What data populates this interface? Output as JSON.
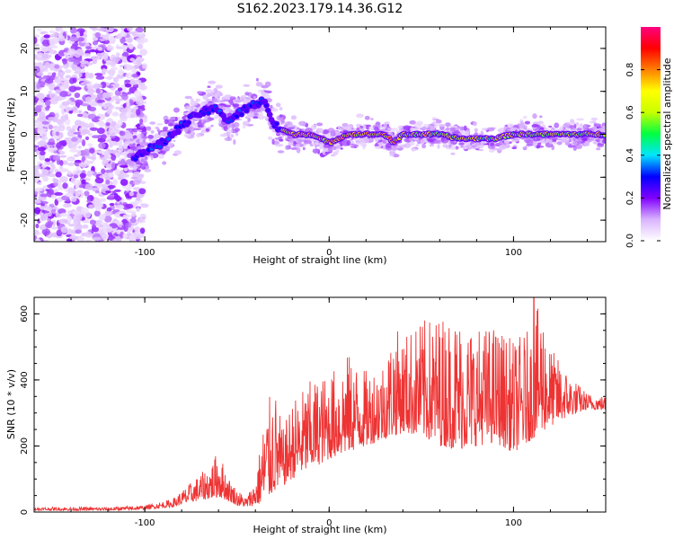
{
  "figure_title": "S162.2023.179.14.36.G12",
  "chart_data": [
    {
      "type": "heatmap",
      "title": "S162.2023.179.14.36.G12",
      "xlabel": "Height of straight line (km)",
      "ylabel": "Frequency (Hz)",
      "xlim": [
        -160,
        150
      ],
      "ylim": [
        -25,
        25
      ],
      "xticks": [
        -100,
        0,
        100
      ],
      "yticks": [
        -20,
        -10,
        0,
        10,
        20
      ],
      "colorbar": {
        "label": "Normalized spectral amplitude",
        "range": [
          0,
          1
        ],
        "ticks": [
          0.0,
          0.2,
          0.4,
          0.6,
          0.8
        ],
        "colormap": [
          "#ffffff",
          "#d9b3ff",
          "#8000ff",
          "#0000ff",
          "#00e5ff",
          "#00ff40",
          "#c8ff00",
          "#ffff00",
          "#ff8000",
          "#ff0000",
          "#ff0080"
        ]
      },
      "ridge": {
        "description_points_x": [
          -105,
          -100,
          -90,
          -80,
          -70,
          -60,
          -55,
          -45,
          -35,
          -30,
          -20,
          -10,
          0,
          10,
          20,
          30,
          35,
          40,
          50,
          60,
          70,
          80,
          90,
          100,
          110,
          120,
          130,
          140,
          150
        ],
        "description_points_y": [
          -5,
          -4,
          -2,
          2,
          5,
          6,
          3,
          6,
          8,
          2,
          0,
          0,
          -2,
          0,
          0,
          0,
          -2,
          0,
          0,
          0,
          -1,
          -1,
          -1,
          0,
          0,
          0,
          0,
          0,
          0
        ],
        "peak_amplitude": 1.0
      }
    },
    {
      "type": "line",
      "xlabel": "Height of straight line (km)",
      "ylabel": "SNR (10 * v/v)",
      "xlim": [
        -160,
        150
      ],
      "ylim": [
        0,
        650
      ],
      "xticks": [
        -100,
        0,
        100
      ],
      "yticks": [
        0,
        200,
        400,
        600
      ],
      "color": "#ee3333",
      "envelope_x": [
        -160,
        -120,
        -100,
        -85,
        -75,
        -65,
        -60,
        -55,
        -50,
        -45,
        -40,
        -35,
        -30,
        -25,
        -20,
        -10,
        0,
        10,
        20,
        30,
        35,
        40,
        50,
        60,
        70,
        80,
        90,
        100,
        110,
        115,
        120,
        130,
        140,
        150
      ],
      "envelope_low": [
        5,
        5,
        8,
        15,
        30,
        40,
        45,
        35,
        20,
        15,
        20,
        30,
        60,
        80,
        100,
        130,
        160,
        180,
        200,
        220,
        230,
        240,
        230,
        200,
        190,
        200,
        210,
        180,
        220,
        240,
        260,
        290,
        310,
        310
      ],
      "envelope_high": [
        15,
        15,
        20,
        40,
        90,
        140,
        190,
        110,
        70,
        45,
        100,
        300,
        390,
        250,
        340,
        400,
        420,
        480,
        430,
        470,
        560,
        540,
        580,
        600,
        600,
        560,
        570,
        520,
        560,
        650,
        500,
        420,
        360,
        350
      ],
      "peak": {
        "x": 111,
        "y": 650
      }
    }
  ]
}
